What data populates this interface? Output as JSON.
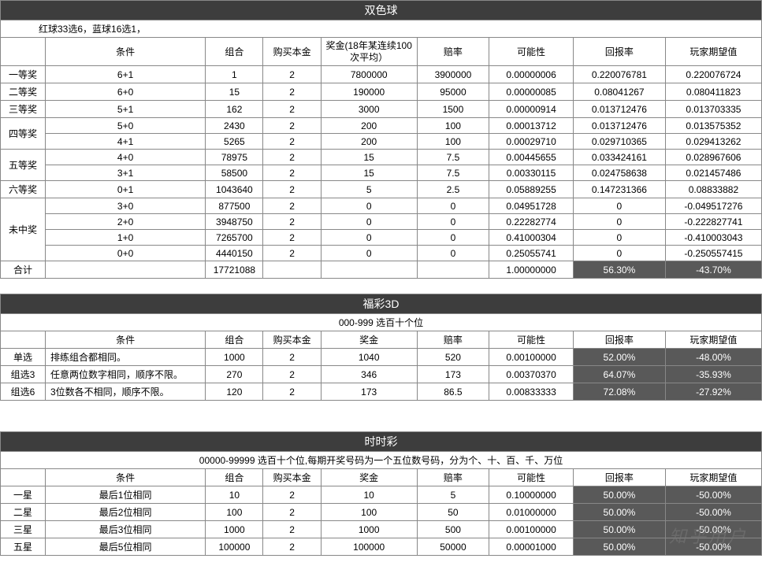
{
  "watermark": "知乎用户",
  "section1": {
    "title": "双色球",
    "subtitle": "红球33选6，蓝球16选1，",
    "headers": [
      "",
      "条件",
      "组合",
      "购买本金",
      "奖金(18年某连续100次平均）",
      "赔率",
      "可能性",
      "回报率",
      "玩家期望值"
    ],
    "groups": [
      {
        "label": "一等奖",
        "rows": [
          [
            "6+1",
            "1",
            "2",
            "7800000",
            "3900000",
            "0.00000006",
            "0.220076781",
            "0.220076724"
          ]
        ]
      },
      {
        "label": "二等奖",
        "rows": [
          [
            "6+0",
            "15",
            "2",
            "190000",
            "95000",
            "0.00000085",
            "0.08041267",
            "0.080411823"
          ]
        ]
      },
      {
        "label": "三等奖",
        "rows": [
          [
            "5+1",
            "162",
            "2",
            "3000",
            "1500",
            "0.00000914",
            "0.013712476",
            "0.013703335"
          ]
        ]
      },
      {
        "label": "四等奖",
        "rows": [
          [
            "5+0",
            "2430",
            "2",
            "200",
            "100",
            "0.00013712",
            "0.013712476",
            "0.013575352"
          ],
          [
            "4+1",
            "5265",
            "2",
            "200",
            "100",
            "0.00029710",
            "0.029710365",
            "0.029413262"
          ]
        ]
      },
      {
        "label": "五等奖",
        "rows": [
          [
            "4+0",
            "78975",
            "2",
            "15",
            "7.5",
            "0.00445655",
            "0.033424161",
            "0.028967606"
          ],
          [
            "3+1",
            "58500",
            "2",
            "15",
            "7.5",
            "0.00330115",
            "0.024758638",
            "0.021457486"
          ]
        ]
      },
      {
        "label": "六等奖",
        "rows": [
          [
            "0+1",
            "1043640",
            "2",
            "5",
            "2.5",
            "0.05889255",
            "0.147231366",
            "0.08833882"
          ]
        ]
      },
      {
        "label": "未中奖",
        "rows": [
          [
            "3+0",
            "877500",
            "2",
            "0",
            "0",
            "0.04951728",
            "0",
            "-0.049517276"
          ],
          [
            "2+0",
            "3948750",
            "2",
            "0",
            "0",
            "0.22282774",
            "0",
            "-0.222827741"
          ],
          [
            "1+0",
            "7265700",
            "2",
            "0",
            "0",
            "0.41000304",
            "0",
            "-0.410003043"
          ],
          [
            "0+0",
            "4440150",
            "2",
            "0",
            "0",
            "0.25055741",
            "0",
            "-0.250557415"
          ]
        ]
      }
    ],
    "total": {
      "label": "合计",
      "cells": [
        "",
        "17721088",
        "",
        "",
        "",
        "1.00000000",
        "56.30%",
        "-43.70%"
      ],
      "hl": [
        6,
        7
      ]
    }
  },
  "section2": {
    "title": "福彩3D",
    "subtitle": "000-999  选百十个位",
    "headers": [
      "",
      "条件",
      "组合",
      "购买本金",
      "奖金",
      "赔率",
      "可能性",
      "回报率",
      "玩家期望值"
    ],
    "rows": [
      {
        "label": "单选",
        "cells": [
          "排练组合都相同。",
          "1000",
          "2",
          "1040",
          "520",
          "0.00100000",
          "52.00%",
          "-48.00%"
        ]
      },
      {
        "label": "组选3",
        "cells": [
          "任意两位数字相同，顺序不限。",
          "270",
          "2",
          "346",
          "173",
          "0.00370370",
          "64.07%",
          "-35.93%"
        ]
      },
      {
        "label": "组选6",
        "cells": [
          "3位数各不相同，顺序不限。",
          "120",
          "2",
          "173",
          "86.5",
          "0.00833333",
          "72.08%",
          "-27.92%"
        ]
      }
    ],
    "hl_cols": [
      6,
      7
    ]
  },
  "section3": {
    "title": "时时彩",
    "subtitle": "00000-99999  选百十个位,每期开奖号码为一个五位数号码，分为个、十、百、千、万位",
    "headers": [
      "",
      "条件",
      "组合",
      "购买本金",
      "奖金",
      "赔率",
      "可能性",
      "回报率",
      "玩家期望值"
    ],
    "rows": [
      {
        "label": "一星",
        "cells": [
          "最后1位相同",
          "10",
          "2",
          "10",
          "5",
          "0.10000000",
          "50.00%",
          "-50.00%"
        ]
      },
      {
        "label": "二星",
        "cells": [
          "最后2位相同",
          "100",
          "2",
          "100",
          "50",
          "0.01000000",
          "50.00%",
          "-50.00%"
        ]
      },
      {
        "label": "三星",
        "cells": [
          "最后3位相同",
          "1000",
          "2",
          "1000",
          "500",
          "0.00100000",
          "50.00%",
          "-50.00%"
        ]
      },
      {
        "label": "五星",
        "cells": [
          "最后5位相同",
          "100000",
          "2",
          "100000",
          "50000",
          "0.00001000",
          "50.00%",
          "-50.00%"
        ]
      }
    ],
    "hl_cols": [
      6,
      7
    ]
  }
}
